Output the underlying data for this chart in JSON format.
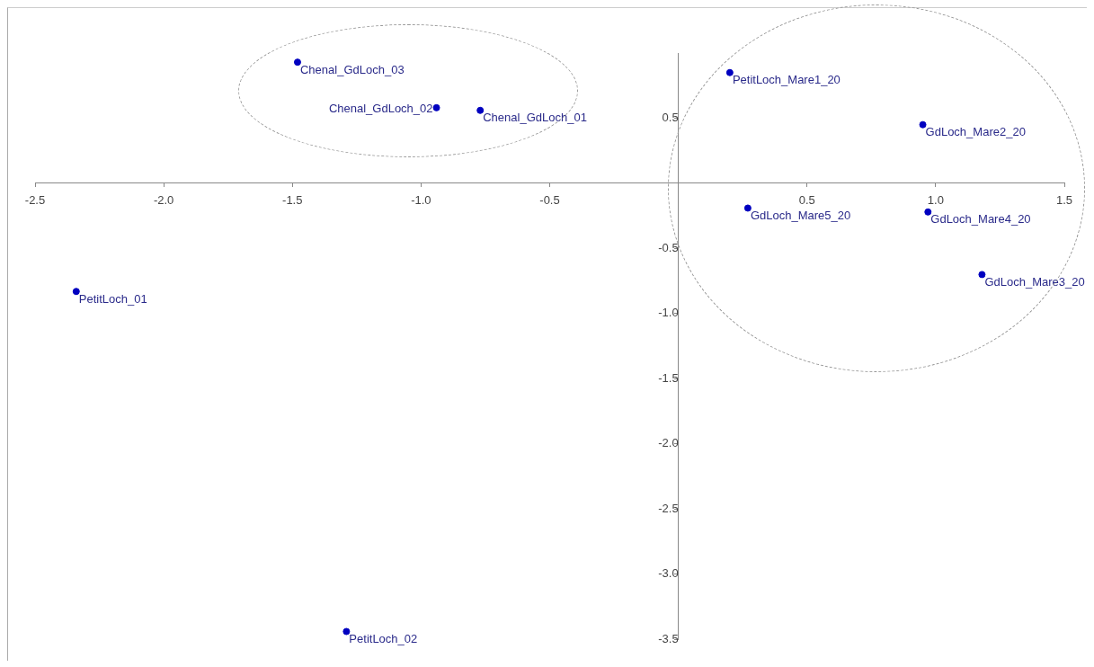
{
  "chart_data": {
    "type": "scatter",
    "x": [
      -1.48,
      -0.94,
      -0.77,
      0.2,
      0.95,
      0.27,
      0.97,
      1.18,
      -2.34,
      -1.29
    ],
    "values": [
      0.93,
      0.58,
      0.56,
      0.85,
      0.45,
      -0.19,
      -0.22,
      -0.7,
      -0.83,
      -3.44
    ],
    "annotations": [
      {
        "text": "Chenal_GdLoch_03",
        "x": -1.48,
        "y": 0.93
      },
      {
        "text": "Chenal_GdLoch_02",
        "x": -0.94,
        "y": 0.58
      },
      {
        "text": "Chenal_GdLoch_01",
        "x": -0.77,
        "y": 0.56
      },
      {
        "text": "PetitLoch_Mare1_20",
        "x": 0.2,
        "y": 0.85
      },
      {
        "text": "GdLoch_Mare2_20",
        "x": 0.95,
        "y": 0.45
      },
      {
        "text": "GdLoch_Mare5_20",
        "x": 0.27,
        "y": -0.19
      },
      {
        "text": "GdLoch_Mare4_20",
        "x": 0.97,
        "y": -0.22
      },
      {
        "text": "GdLoch_Mare3_20",
        "x": 1.18,
        "y": -0.7
      },
      {
        "text": "PetitLoch_01",
        "x": -2.34,
        "y": -0.83
      },
      {
        "text": "PetitLoch_02",
        "x": -1.29,
        "y": -3.44
      }
    ],
    "color": "#0000c0",
    "marker": "circle",
    "grid": false,
    "legend": false,
    "xlim": [
      -2.5,
      1.5
    ],
    "ylim": [
      -3.5,
      1.0
    ],
    "xticks": [
      -2.5,
      {
        "value": -2,
        "label": "-2.0"
      },
      -1.5,
      {
        "value": -1,
        "label": "-1.0"
      },
      -0.5,
      0.5,
      {
        "value": 1,
        "label": "1.0"
      },
      1.5
    ],
    "yticks": [
      0.5,
      -0.5,
      {
        "value": -1,
        "label": "-1.0"
      },
      -1.5,
      {
        "value": -2,
        "label": "-2.0"
      },
      -2.5,
      {
        "value": -3,
        "label": "-3.0"
      },
      -3.5
    ]
  }
}
